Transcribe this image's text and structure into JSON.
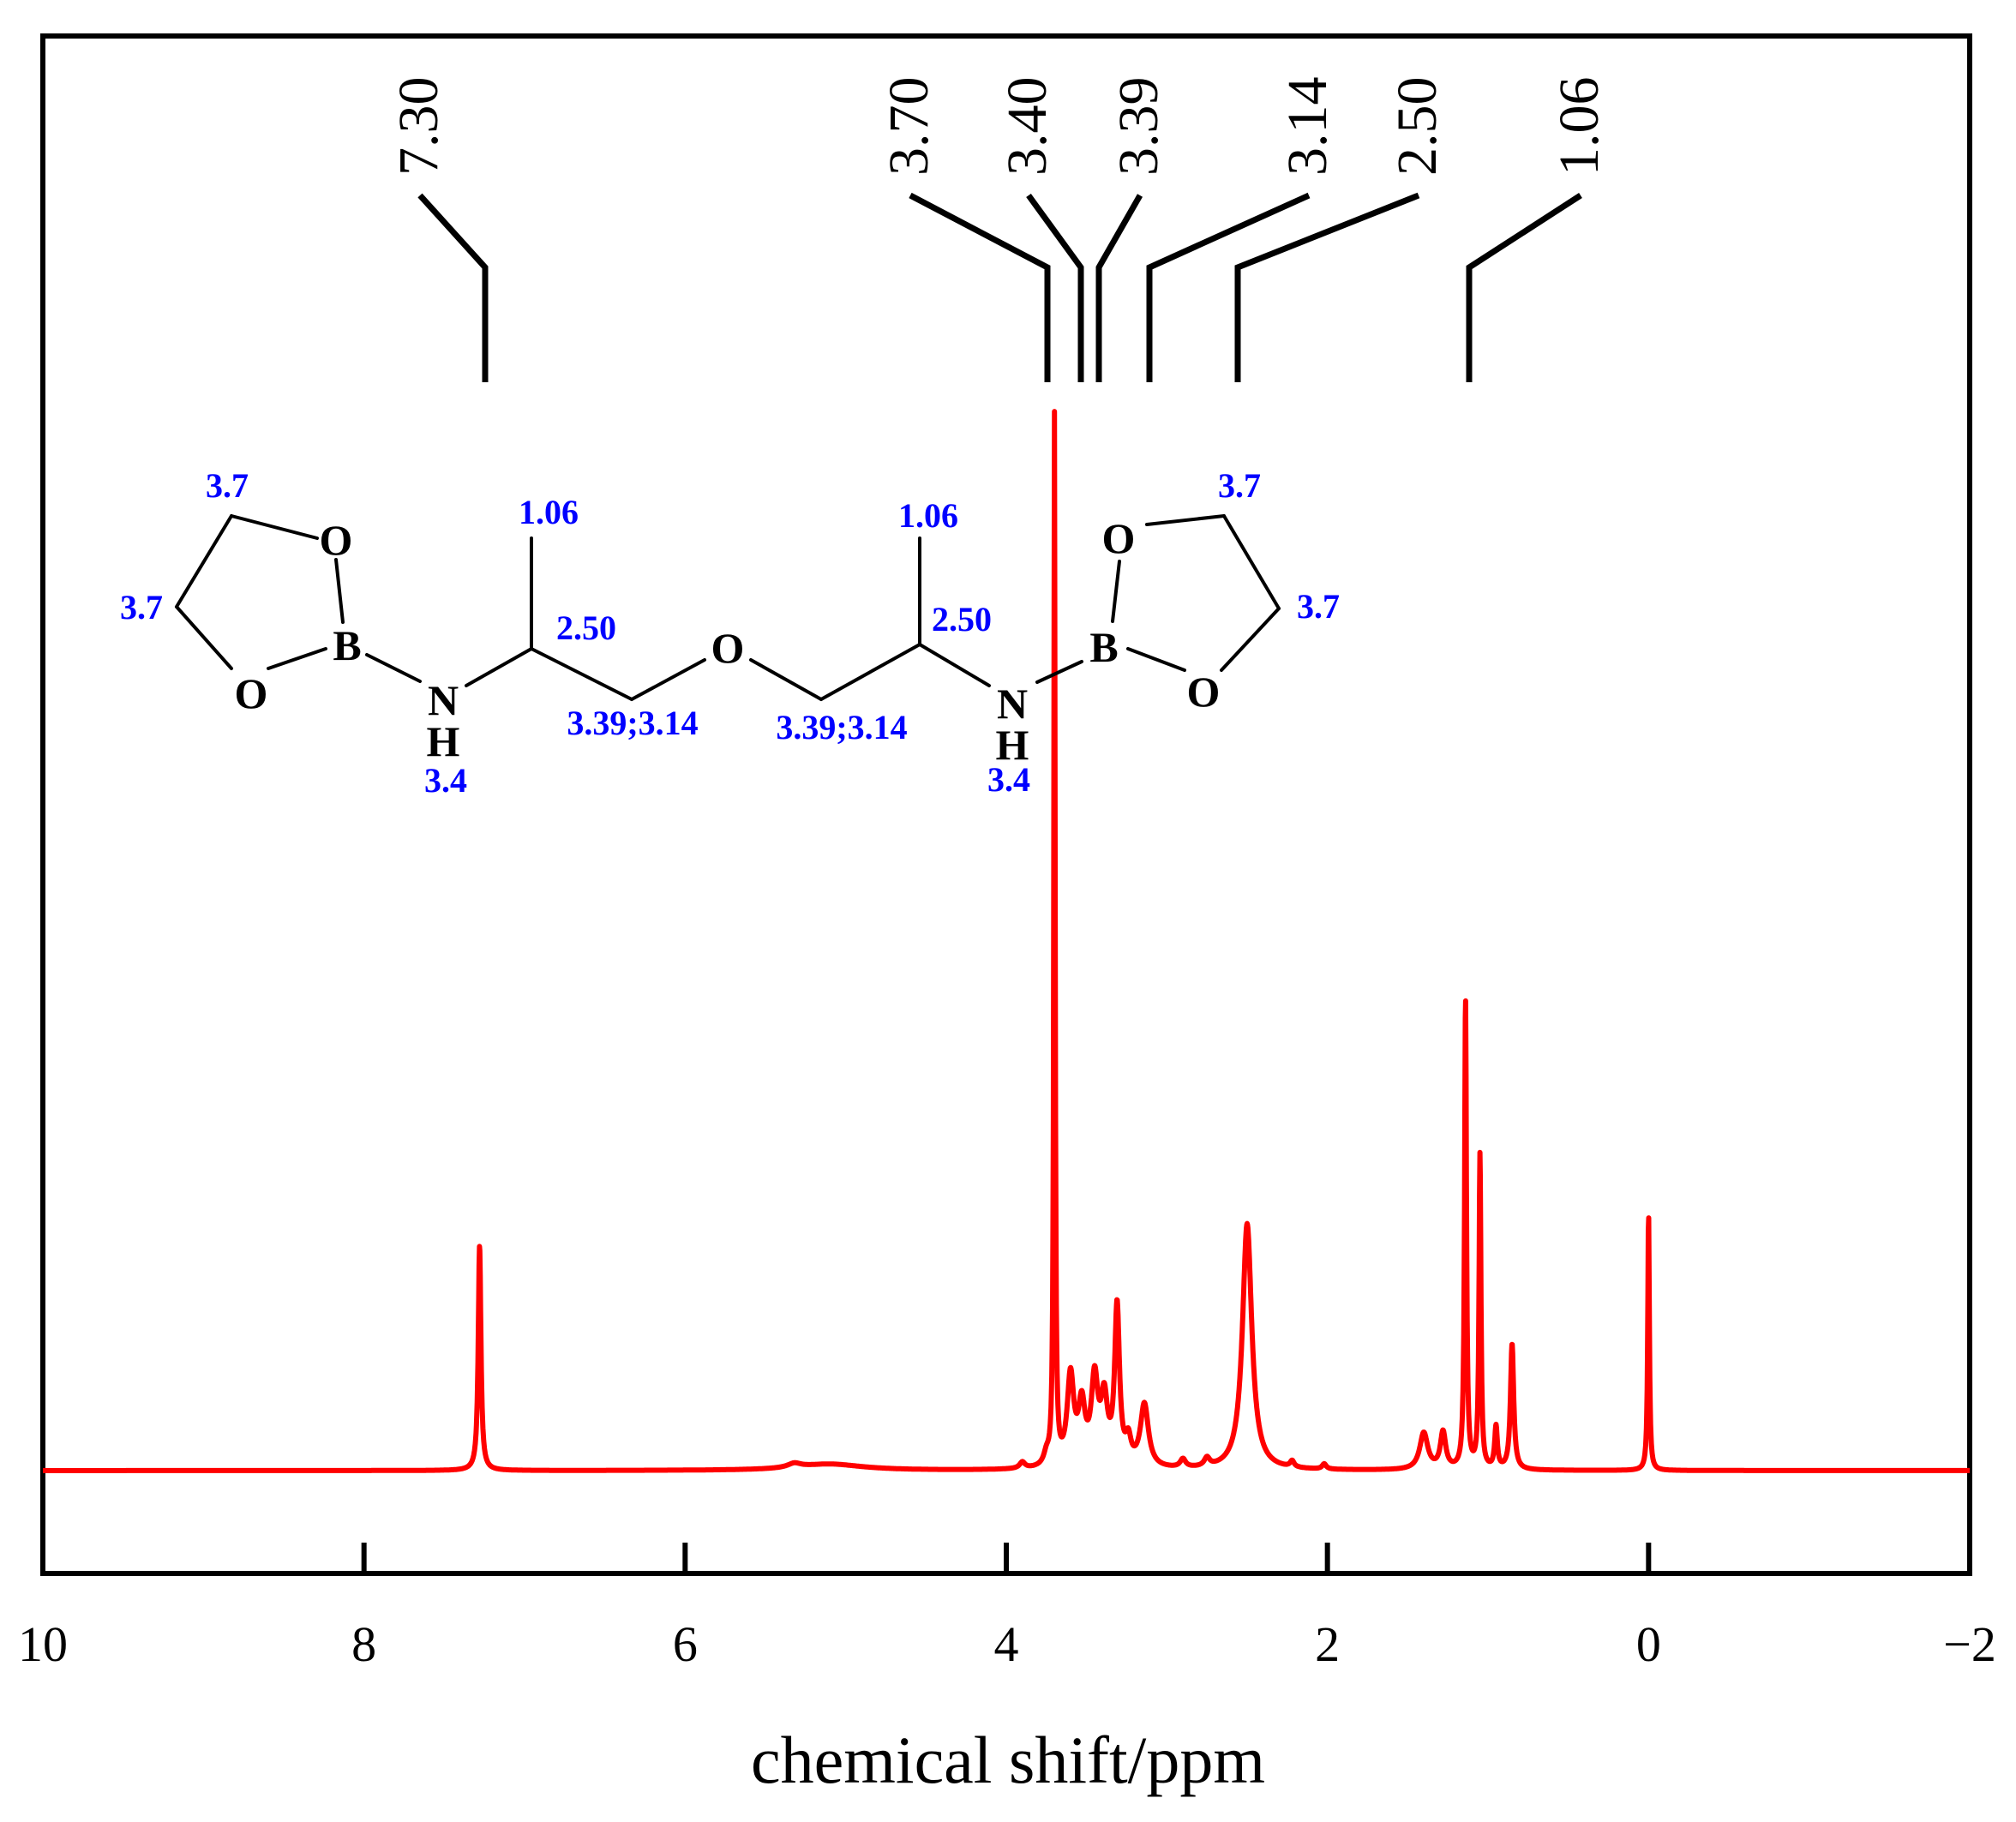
{
  "colors": {
    "spectrum": "#ff0000",
    "annotation": "#0000ff",
    "frame": "#000000"
  },
  "chart_data": {
    "type": "line",
    "xlabel": "chemical shift/ppm",
    "ylabel": "",
    "xlim": [
      10,
      -2
    ],
    "ylim": [
      0,
      1.12
    ],
    "x_reversed": true,
    "x_ticks": [
      10,
      8,
      6,
      4,
      2,
      0,
      -2
    ],
    "x_tick_labels": [
      "10",
      "8",
      "6",
      "4",
      "2",
      "0",
      "−2"
    ],
    "grid": false,
    "legend": "none",
    "peak_markers": [
      "7.30",
      "3.70",
      "3.40",
      "3.39",
      "3.14",
      "2.50",
      "1.06"
    ],
    "peaks": [
      {
        "shift": 7.28,
        "height": 0.215,
        "width": 0.01
      },
      {
        "shift": 5.32,
        "height": 0.004,
        "width": 0.05
      },
      {
        "shift": 5.1,
        "height": 0.006,
        "width": 0.25
      },
      {
        "shift": 3.9,
        "height": 0.006,
        "width": 0.02
      },
      {
        "shift": 3.75,
        "height": 0.01,
        "width": 0.02
      },
      {
        "shift": 3.7,
        "height": 1.0,
        "width": 0.005
      },
      {
        "shift": 3.6,
        "height": 0.085,
        "width": 0.025
      },
      {
        "shift": 3.53,
        "height": 0.055,
        "width": 0.025
      },
      {
        "shift": 3.45,
        "height": 0.08,
        "width": 0.025
      },
      {
        "shift": 3.39,
        "height": 0.06,
        "width": 0.025
      },
      {
        "shift": 3.31,
        "height": 0.15,
        "width": 0.018
      },
      {
        "shift": 3.24,
        "height": 0.022,
        "width": 0.02
      },
      {
        "shift": 3.14,
        "height": 0.06,
        "width": 0.03
      },
      {
        "shift": 2.9,
        "height": 0.008,
        "width": 0.02
      },
      {
        "shift": 2.75,
        "height": 0.008,
        "width": 0.02
      },
      {
        "shift": 2.5,
        "height": 0.235,
        "width": 0.035
      },
      {
        "shift": 2.22,
        "height": 0.006,
        "width": 0.015
      },
      {
        "shift": 2.02,
        "height": 0.005,
        "width": 0.015
      },
      {
        "shift": 1.4,
        "height": 0.035,
        "width": 0.03
      },
      {
        "shift": 1.28,
        "height": 0.035,
        "width": 0.02
      },
      {
        "shift": 1.14,
        "height": 0.45,
        "width": 0.007
      },
      {
        "shift": 1.05,
        "height": 0.3,
        "width": 0.007
      },
      {
        "shift": 0.95,
        "height": 0.04,
        "width": 0.01
      },
      {
        "shift": 0.85,
        "height": 0.12,
        "width": 0.012
      },
      {
        "shift": 0.0,
        "height": 0.245,
        "width": 0.006
      }
    ]
  },
  "structure": {
    "atoms": {
      "o": "O",
      "b": "B",
      "n": "N",
      "h": "H"
    },
    "annotations": {
      "ring_top_left": "3.7",
      "ring_left": "3.7",
      "nh_left": "3.4",
      "ch3_left": "1.06",
      "ch_left": "2.50",
      "ch2_left": "3.39;3.14",
      "ch2_right": "3.39;3.14",
      "ch3_right": "1.06",
      "ch_right": "2.50",
      "nh_right": "3.4",
      "ring_top_right": "3.7",
      "ring_right": "3.7"
    }
  }
}
